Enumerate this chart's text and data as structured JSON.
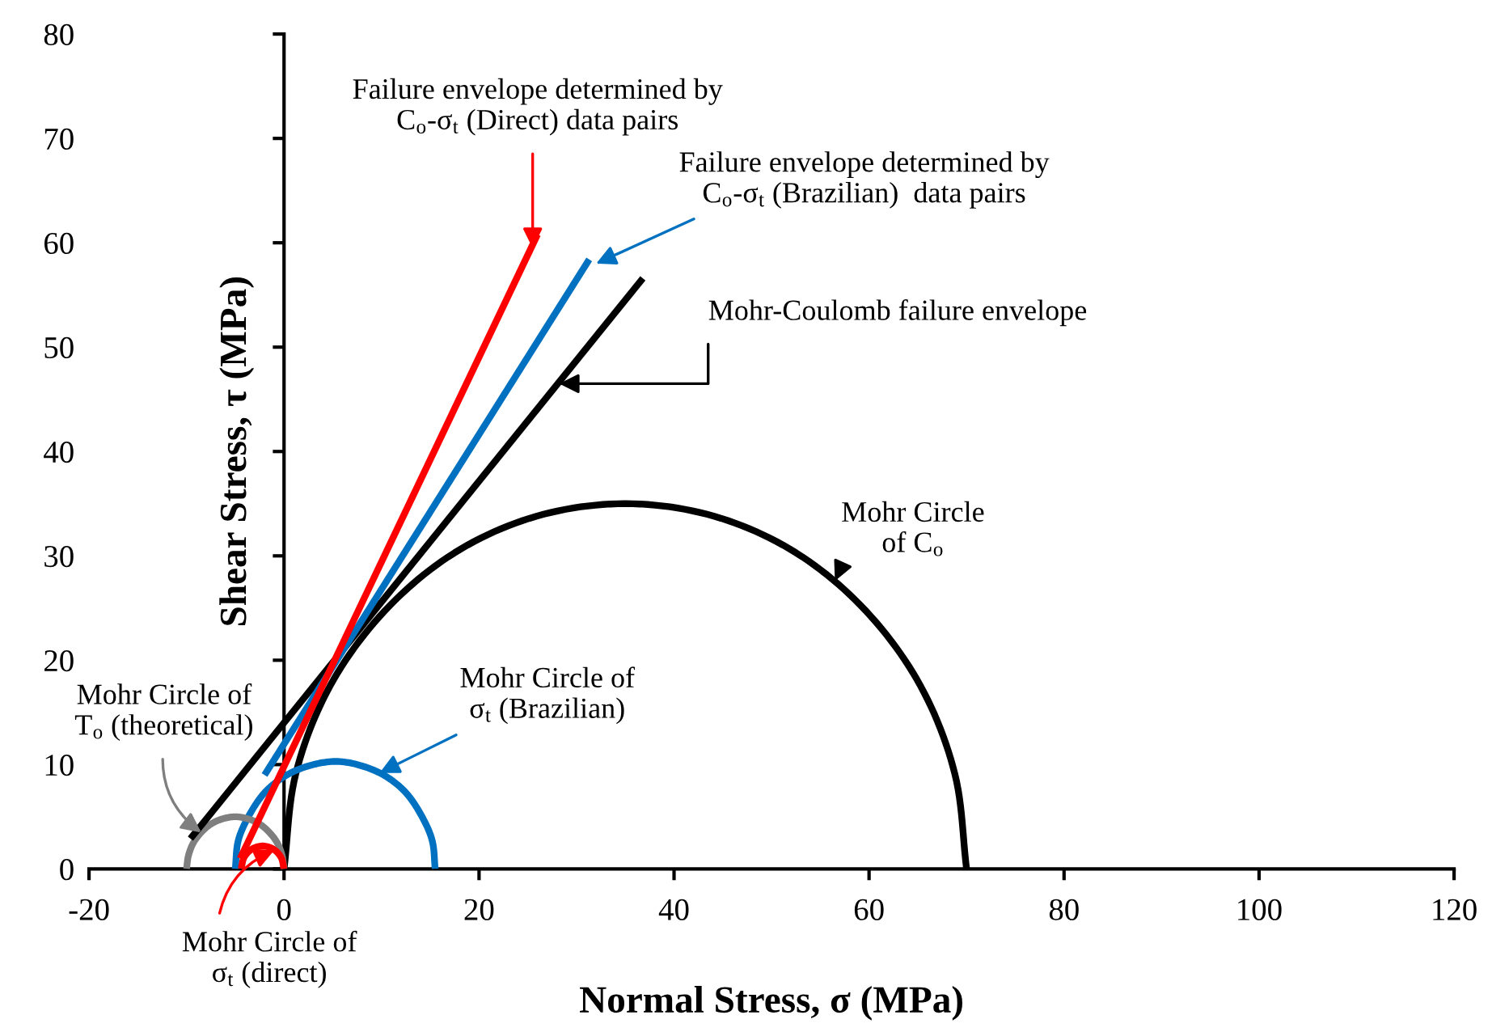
{
  "chart_data": {
    "type": "line",
    "xlabel": "Normal Stress, σ (MPa)",
    "ylabel": "Shear Stress, τ (MPa)",
    "xlim": [
      -20,
      120
    ],
    "xticks": [
      -20,
      0,
      20,
      40,
      60,
      80,
      100,
      120
    ],
    "ylim": [
      0,
      80
    ],
    "yticks": [
      0,
      10,
      20,
      30,
      40,
      50,
      60,
      70,
      80
    ],
    "series": [
      {
        "color": "#000000",
        "x": [
          70,
          68.8,
          65.3,
          59.7,
          52.5,
          44.1,
          35,
          25.9,
          17.5,
          10.3,
          4.7,
          1.2,
          0
        ],
        "values": [
          0,
          9.1,
          17.5,
          24.7,
          30.3,
          33.8,
          35,
          33.8,
          30.3,
          24.7,
          17.5,
          9.1,
          0
        ]
      },
      {
        "color": "#0070c0",
        "x": [
          15.5,
          15.2,
          14.1,
          12.5,
          10.4,
          7.9,
          5.3,
          2.6,
          0.1,
          -2.0,
          -3.6,
          -4.7,
          -5
        ],
        "values": [
          0,
          2.7,
          5.1,
          7.3,
          8.9,
          9.9,
          10.3,
          9.9,
          8.9,
          7.3,
          5.1,
          2.7,
          0
        ]
      },
      {
        "color": "#7f7f7f",
        "x": [
          0,
          -0.2,
          -0.7,
          -1.5,
          -2.5,
          -3.7,
          -5,
          -6.3,
          -7.5,
          -8.5,
          -9.3,
          -9.8,
          -10
        ],
        "values": [
          0,
          1.3,
          2.5,
          3.5,
          4.3,
          4.8,
          5,
          4.8,
          4.3,
          3.5,
          2.5,
          1.3,
          0
        ]
      },
      {
        "color": "#ff0000",
        "x": [
          0,
          -0.3,
          -1.1,
          -2.2,
          -3.3,
          -4.1,
          -4.4
        ],
        "values": [
          0,
          1.1,
          1.9,
          2.2,
          1.9,
          1.1,
          0
        ]
      },
      {
        "color": "#000000",
        "x": [
          -9.6,
          36.8
        ],
        "values": [
          2.9,
          56.6
        ]
      },
      {
        "color": "#0070c0",
        "x": [
          -2,
          31.3
        ],
        "values": [
          9,
          58.4
        ]
      },
      {
        "color": "#ff0000",
        "x": [
          -4.5,
          26
        ],
        "values": [
          1,
          60.8
        ]
      }
    ],
    "annotations": [
      {
        "text": "Failure envelope determined by\nC$_{o}$-σ$_{t}$ (Direct) data pairs",
        "x": 25.5,
        "y": 59.5
      },
      {
        "text": "Failure envelope determined by\nC$_{o}$-σ$_{t}$ (Brazilian)  data pairs",
        "x": 32,
        "y": 58
      },
      {
        "text": "Mohr-Coulomb failure envelope",
        "x": 28.2,
        "y": 46.5
      },
      {
        "text": "Mohr Circle\nof C$_{o}$",
        "x": 56.5,
        "y": 27.6
      },
      {
        "text": "Mohr Circle of\nσ$_{t}$ (Brazilian)",
        "x": 9.8,
        "y": 9.2
      },
      {
        "text": "Mohr Circle of\nT$_{o}$ (theoretical)",
        "x": -8.5,
        "y": 3.5
      },
      {
        "text": "Mohr Circle of\nσ$_{t}$ (direct)",
        "x": -1,
        "y": 1.8
      }
    ]
  }
}
